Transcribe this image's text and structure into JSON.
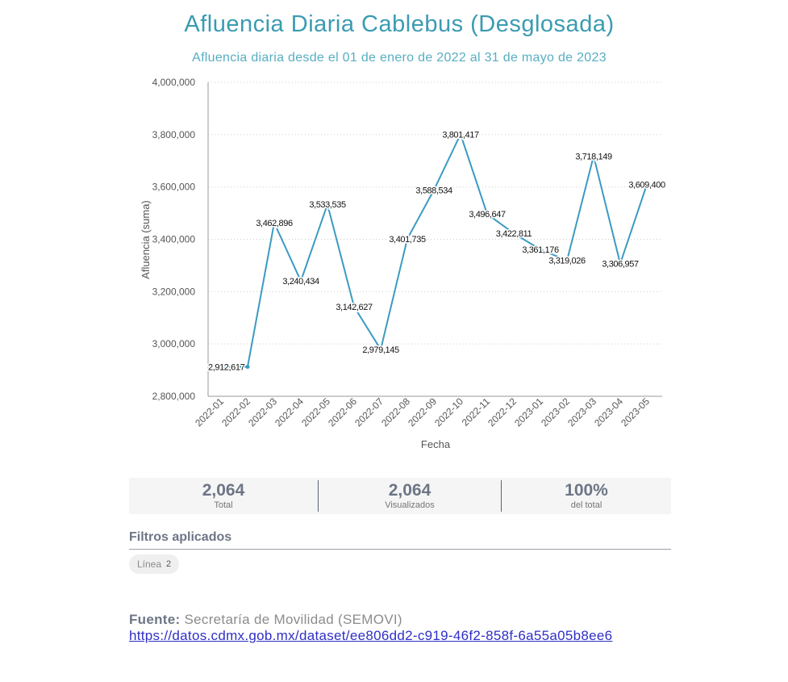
{
  "header": {
    "title": "Afluencia Diaria Cablebus (Desglosada)",
    "subtitle": "Afluencia diaria desde el 01 de enero de 2022 al 31 de mayo de 2023"
  },
  "colors": {
    "title": "#3a9bb2",
    "line": "#3a9bc2",
    "stat_text": "#6d7585"
  },
  "chart_data": {
    "type": "line",
    "xlabel": "Fecha",
    "ylabel": "Afluencia (suma)",
    "ylim": [
      2800000,
      4000000
    ],
    "yticks": [
      2800000,
      3000000,
      3200000,
      3400000,
      3600000,
      3800000,
      4000000
    ],
    "ytick_labels": [
      "2,800,000",
      "3,000,000",
      "3,200,000",
      "3,400,000",
      "3,600,000",
      "3,800,000",
      "4,000,000"
    ],
    "grid": "horizontal dotted",
    "categories": [
      "2022-01",
      "2022-02",
      "2022-03",
      "2022-04",
      "2022-05",
      "2022-06",
      "2022-07",
      "2022-08",
      "2022-09",
      "2022-10",
      "2022-11",
      "2022-12",
      "2023-01",
      "2023-02",
      "2023-03",
      "2023-04",
      "2023-05"
    ],
    "values": [
      2912617,
      2912617,
      3462896,
      3240434,
      3533535,
      3142627,
      2979145,
      3401735,
      3588534,
      3801417,
      3496647,
      3422811,
      3361176,
      3319026,
      3718149,
      3306957,
      3609400
    ],
    "data_labels": [
      "2,912,617",
      null,
      "3,462,896",
      "3,240,434",
      "3,533,535",
      "3,142,627",
      "2,979,145",
      "3,401,735",
      "3,588,534",
      "3,801,417",
      "3,496,647",
      "3,422,811",
      "3,361,176",
      "3,319,026",
      "3,718,149",
      "3,306,957",
      "3,609,400"
    ]
  },
  "stats": [
    {
      "value": "2,064",
      "label": "Total"
    },
    {
      "value": "2,064",
      "label": "Visualizados"
    },
    {
      "value": "100%",
      "label": "del total"
    }
  ],
  "filters": {
    "title": "Filtros aplicados",
    "chips": [
      {
        "name": "Línea",
        "value": "2"
      }
    ]
  },
  "source": {
    "label": "Fuente:",
    "text": "Secretaría de Movilidad (SEMOVI)",
    "url": "https://datos.cdmx.gob.mx/dataset/ee806dd2-c919-46f2-858f-6a55a05b8ee6"
  }
}
